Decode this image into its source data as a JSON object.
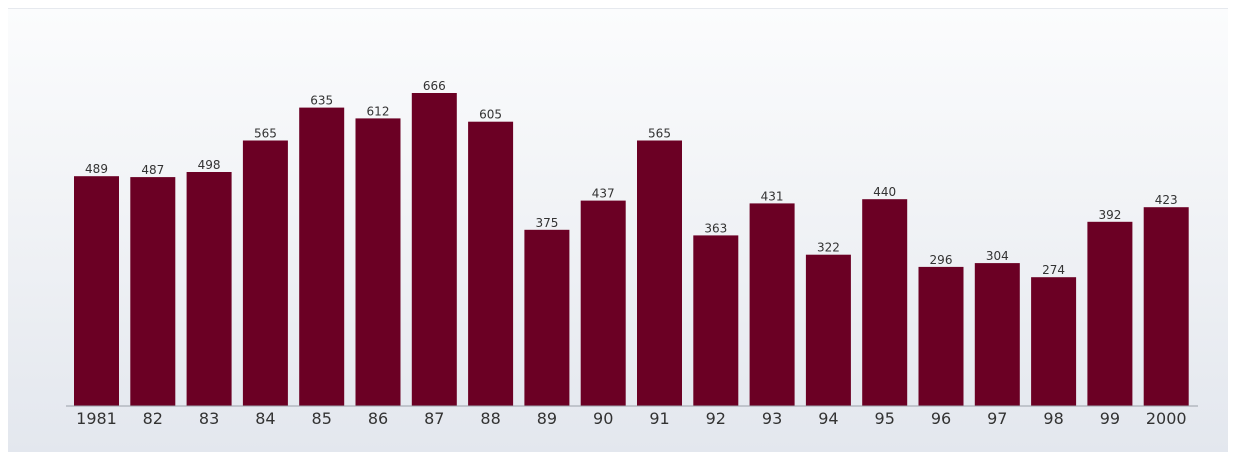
{
  "chart_data": {
    "type": "bar",
    "title": "",
    "xlabel": "",
    "ylabel": "",
    "categories": [
      "1981",
      "82",
      "83",
      "84",
      "85",
      "86",
      "87",
      "88",
      "89",
      "90",
      "91",
      "92",
      "93",
      "94",
      "95",
      "96",
      "97",
      "98",
      "99",
      "2000"
    ],
    "values": [
      489,
      487,
      498,
      565,
      635,
      612,
      666,
      605,
      375,
      437,
      565,
      363,
      431,
      322,
      440,
      296,
      304,
      274,
      392,
      423
    ],
    "ylim": [
      0,
      700
    ],
    "grid": false,
    "legend": "none",
    "colors": {
      "bar": "#6b0024",
      "text": "#333333",
      "background": "#eef1f5"
    }
  }
}
